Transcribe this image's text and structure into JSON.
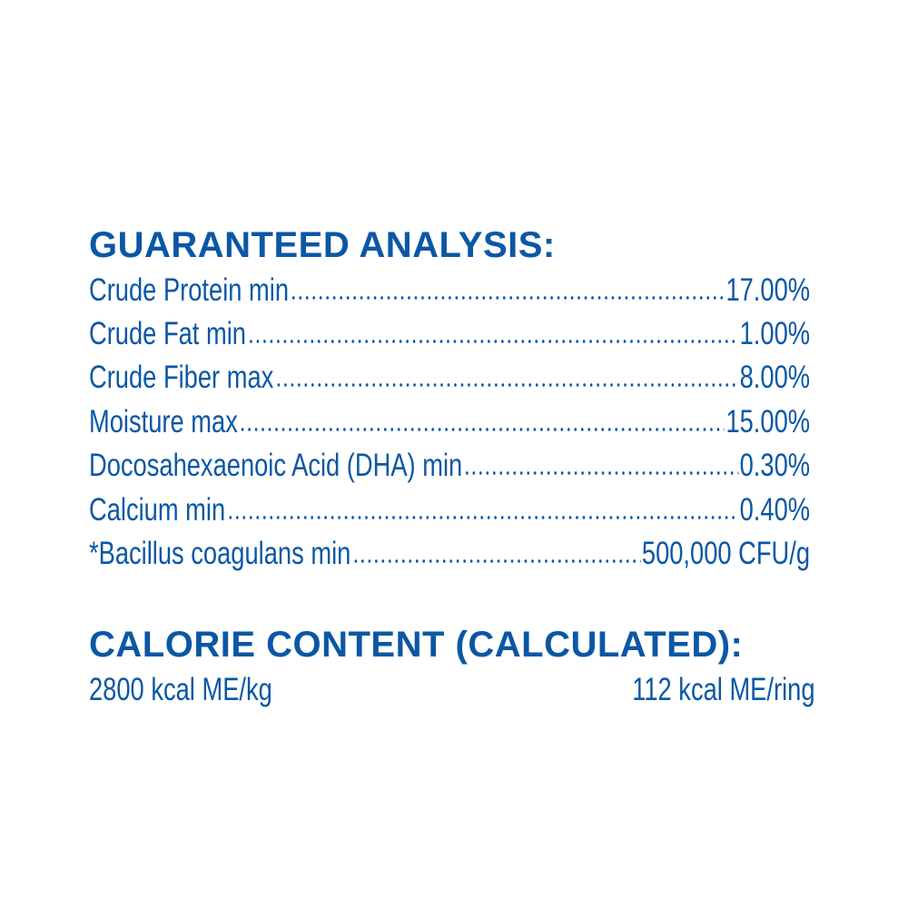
{
  "guaranteed_analysis": {
    "title": "GUARANTEED ANALYSIS:",
    "rows": [
      {
        "label": "Crude Protein min",
        "value": "17.00%"
      },
      {
        "label": "Crude Fat min",
        "value": "1.00%"
      },
      {
        "label": "Crude Fiber max",
        "value": "8.00%"
      },
      {
        "label": "Moisture max",
        "value": "15.00%"
      },
      {
        "label": "Docosahexaenoic Acid (DHA) min",
        "value": "0.30%"
      },
      {
        "label": "Calcium min",
        "value": "0.40%"
      },
      {
        "label": "*Bacillus coagulans min",
        "value": "500,000 CFU/g"
      }
    ]
  },
  "calorie_content": {
    "title": "CALORIE CONTENT (CALCULATED):",
    "per_kg": "2800 kcal ME/kg",
    "per_ring": "112 kcal ME/ring"
  },
  "colors": {
    "text": "#0b57a5",
    "background": "#ffffff"
  }
}
